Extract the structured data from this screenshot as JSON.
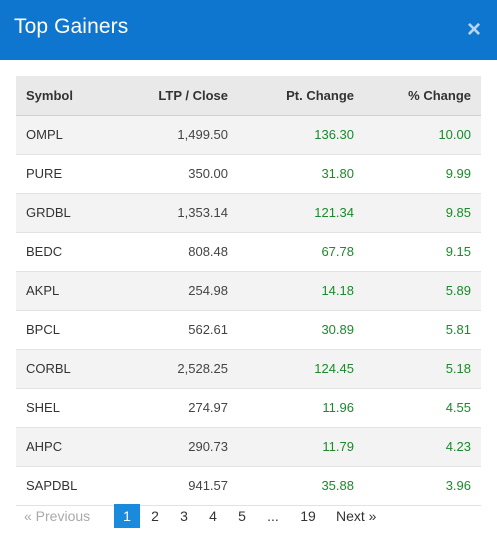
{
  "header": {
    "title": "Top Gainers",
    "close_glyph": "×"
  },
  "table": {
    "columns": [
      "Symbol",
      "LTP / Close",
      "Pt. Change",
      "% Change"
    ],
    "rows": [
      {
        "symbol": "OMPL",
        "ltp": "1,499.50",
        "pt": "136.30",
        "pct": "10.00"
      },
      {
        "symbol": "PURE",
        "ltp": "350.00",
        "pt": "31.80",
        "pct": "9.99"
      },
      {
        "symbol": "GRDBL",
        "ltp": "1,353.14",
        "pt": "121.34",
        "pct": "9.85"
      },
      {
        "symbol": "BEDC",
        "ltp": "808.48",
        "pt": "67.78",
        "pct": "9.15"
      },
      {
        "symbol": "AKPL",
        "ltp": "254.98",
        "pt": "14.18",
        "pct": "5.89"
      },
      {
        "symbol": "BPCL",
        "ltp": "562.61",
        "pt": "30.89",
        "pct": "5.81"
      },
      {
        "symbol": "CORBL",
        "ltp": "2,528.25",
        "pt": "124.45",
        "pct": "5.18"
      },
      {
        "symbol": "SHEL",
        "ltp": "274.97",
        "pt": "11.96",
        "pct": "4.55"
      },
      {
        "symbol": "AHPC",
        "ltp": "290.73",
        "pt": "11.79",
        "pct": "4.23"
      },
      {
        "symbol": "SAPDBL",
        "ltp": "941.57",
        "pt": "35.88",
        "pct": "3.96"
      }
    ]
  },
  "pagination": {
    "previous_label": "« Previous",
    "pages": [
      "1",
      "2",
      "3",
      "4",
      "5",
      "...",
      "19"
    ],
    "active_page": "1",
    "next_label": "Next »"
  },
  "colors": {
    "header_bg": "#0f76cf",
    "positive": "#1a8a2a",
    "active_page_bg": "#1a8bdc"
  }
}
